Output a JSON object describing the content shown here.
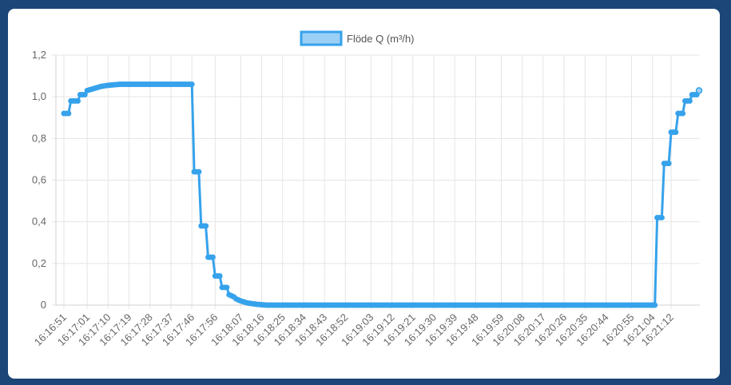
{
  "chart_data": {
    "type": "line",
    "legend": {
      "label": "Flöde Q (m³/h)",
      "position": "top"
    },
    "colors": {
      "line": "#36a2eb",
      "legend_fill": "#9ad0f5",
      "grid": "#e5e5e5",
      "background": "#1b4677"
    },
    "ylim": [
      0,
      1.2
    ],
    "y_ticks": [
      "0",
      "0,2",
      "0,4",
      "0,6",
      "0,8",
      "1,0",
      "1,2"
    ],
    "x_tick_labels": [
      "16:16:51",
      "16:17:01",
      "16:17:10",
      "16:17:19",
      "16:17:28",
      "16:17:37",
      "16:17:46",
      "16:17:56",
      "16:18:07",
      "16:18:16",
      "16:18:25",
      "16:18:34",
      "16:18:43",
      "16:18:52",
      "16:19:03",
      "16:19:12",
      "16:19:21",
      "16:19:30",
      "16:19:39",
      "16:19:48",
      "16:19:59",
      "16:20:08",
      "16:20:17",
      "16:20:26",
      "16:20:35",
      "16:20:44",
      "16:20:55",
      "16:21:04",
      "16:21:12"
    ],
    "grid": true,
    "series": [
      {
        "name": "Flöde Q (m³/h)",
        "points": [
          {
            "x": "16:16:51",
            "y": 0.92
          },
          {
            "x": "16:16:53",
            "y": 0.92
          },
          {
            "x": "16:16:54",
            "y": 0.98
          },
          {
            "x": "16:16:57",
            "y": 0.98
          },
          {
            "x": "16:16:58",
            "y": 1.01
          },
          {
            "x": "16:17:00",
            "y": 1.01
          },
          {
            "x": "16:17:01",
            "y": 1.03
          },
          {
            "x": "16:17:04",
            "y": 1.04
          },
          {
            "x": "16:17:07",
            "y": 1.05
          },
          {
            "x": "16:17:10",
            "y": 1.055
          },
          {
            "x": "16:17:15",
            "y": 1.06
          },
          {
            "x": "16:17:46",
            "y": 1.06
          },
          {
            "x": "16:17:47",
            "y": 0.64
          },
          {
            "x": "16:17:49",
            "y": 0.64
          },
          {
            "x": "16:17:50",
            "y": 0.38
          },
          {
            "x": "16:17:52",
            "y": 0.38
          },
          {
            "x": "16:17:53",
            "y": 0.23
          },
          {
            "x": "16:17:55",
            "y": 0.23
          },
          {
            "x": "16:17:56",
            "y": 0.14
          },
          {
            "x": "16:17:58",
            "y": 0.14
          },
          {
            "x": "16:17:59",
            "y": 0.085
          },
          {
            "x": "16:18:01",
            "y": 0.085
          },
          {
            "x": "16:18:02",
            "y": 0.05
          },
          {
            "x": "16:18:04",
            "y": 0.04
          },
          {
            "x": "16:18:05",
            "y": 0.03
          },
          {
            "x": "16:18:07",
            "y": 0.02
          },
          {
            "x": "16:18:10",
            "y": 0.01
          },
          {
            "x": "16:18:14",
            "y": 0.004
          },
          {
            "x": "16:18:18",
            "y": 0.0
          },
          {
            "x": "16:21:05",
            "y": 0.0
          },
          {
            "x": "16:21:06",
            "y": 0.42
          },
          {
            "x": "16:21:08",
            "y": 0.42
          },
          {
            "x": "16:21:09",
            "y": 0.68
          },
          {
            "x": "16:21:11",
            "y": 0.68
          },
          {
            "x": "16:21:12",
            "y": 0.83
          },
          {
            "x": "16:21:14",
            "y": 0.83
          },
          {
            "x": "16:21:15",
            "y": 0.92
          },
          {
            "x": "16:21:17",
            "y": 0.92
          },
          {
            "x": "16:21:18",
            "y": 0.98
          },
          {
            "x": "16:21:20",
            "y": 0.98
          },
          {
            "x": "16:21:21",
            "y": 1.01
          },
          {
            "x": "16:21:23",
            "y": 1.01
          },
          {
            "x": "16:21:24",
            "y": 1.03
          }
        ]
      }
    ]
  }
}
